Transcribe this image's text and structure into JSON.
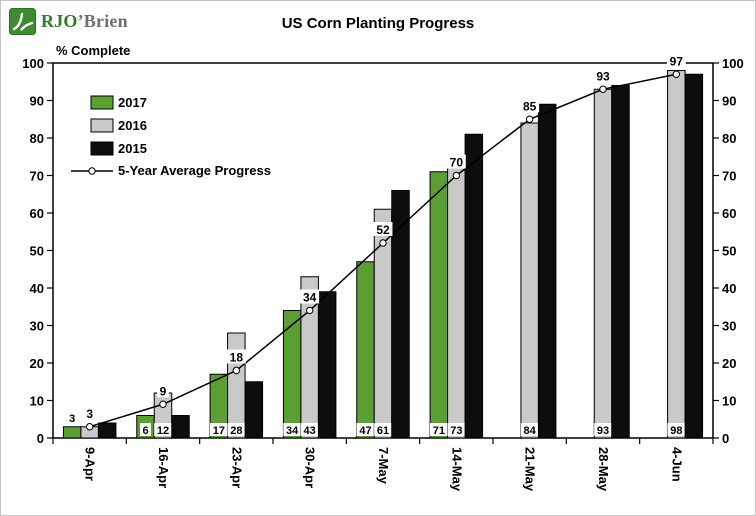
{
  "logo": {
    "text_primary": "RJO",
    "text_secondary": "’Brien",
    "icon_color": "#3d8c2f"
  },
  "chart_data": {
    "type": "bar",
    "title": "US Corn Planting Progress",
    "ylabel": "% Complete",
    "categories": [
      "9-Apr",
      "16-Apr",
      "23-Apr",
      "30-Apr",
      "7-May",
      "14-May",
      "21-May",
      "28-May",
      "4-Jun"
    ],
    "series": [
      {
        "name": "2017",
        "color": "#5b9e31",
        "values": [
          3,
          6,
          17,
          34,
          47,
          71,
          null,
          null,
          null
        ],
        "labels": [
          "3",
          "6",
          "17",
          "34",
          "47",
          "71",
          "",
          "",
          ""
        ]
      },
      {
        "name": "2016",
        "color": "#c9c9c9",
        "values": [
          3,
          12,
          28,
          43,
          61,
          73,
          84,
          93,
          98
        ],
        "labels": [
          "",
          "12",
          "28",
          "43",
          "61",
          "73",
          "84",
          "93",
          "98"
        ]
      },
      {
        "name": "2015",
        "color": "#0d0d0d",
        "values": [
          4,
          6,
          15,
          39,
          66,
          81,
          89,
          94,
          97
        ],
        "labels": [
          "",
          "",
          "",
          "",
          "",
          "",
          "",
          "",
          ""
        ]
      }
    ],
    "line_series": {
      "name": "5-Year Average Progress",
      "color": "#000000",
      "marker": "circle-open",
      "values": [
        3,
        9,
        18,
        34,
        52,
        70,
        85,
        93,
        97
      ],
      "labels": [
        "3",
        "9",
        "18",
        "34",
        "52",
        "70",
        "85",
        "93",
        "97"
      ]
    },
    "ylim": [
      0,
      100
    ],
    "y_ticks": [
      0,
      10,
      20,
      30,
      40,
      50,
      60,
      70,
      80,
      90,
      100
    ],
    "grid": false,
    "legend_position": "top-left-inside",
    "x_label_rotation": 90
  }
}
